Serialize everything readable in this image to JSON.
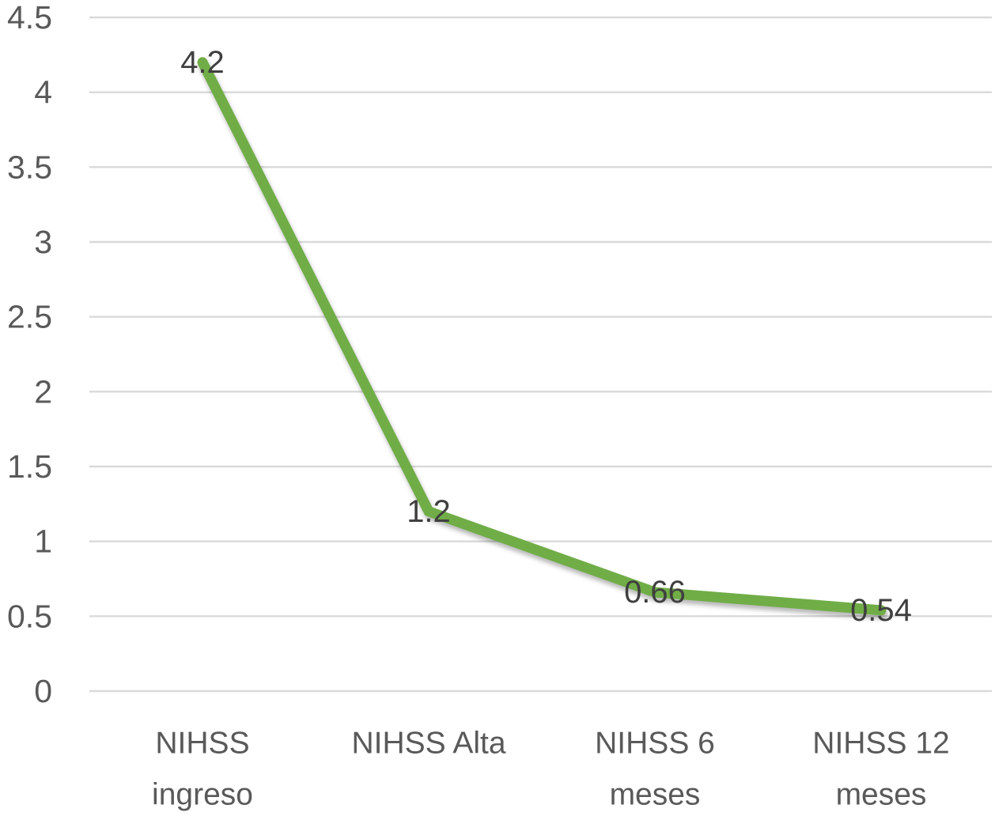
{
  "chart_data": {
    "type": "line",
    "title": "",
    "xlabel": "",
    "ylabel": "",
    "categories": [
      "NIHSS ingreso",
      "NIHSS Alta",
      "NIHSS 6 meses",
      "NIHSS 12 meses"
    ],
    "category_display_lines": [
      [
        "NIHSS",
        "ingreso"
      ],
      [
        "NIHSS Alta"
      ],
      [
        "NIHSS 6",
        "meses"
      ],
      [
        "NIHSS 12",
        "meses"
      ]
    ],
    "series": [
      {
        "name": "NIHSS",
        "values": [
          4.2,
          1.2,
          0.66,
          0.54
        ],
        "color": "#70ad47"
      }
    ],
    "data_labels": [
      "4.2",
      "1.2",
      "0.66",
      "0.54"
    ],
    "ylim": [
      0,
      4.5
    ],
    "y_ticks": [
      0,
      0.5,
      1,
      1.5,
      2,
      2.5,
      3,
      3.5,
      4,
      4.5
    ],
    "y_tick_labels": [
      "0",
      "0.5",
      "1",
      "1.5",
      "2",
      "2.5",
      "3",
      "3.5",
      "4",
      "4.5"
    ],
    "grid": true,
    "legend_position": "none",
    "colors": {
      "line": "#70ad47",
      "gridline": "#d9d9d9",
      "axis_text": "#595959",
      "data_label_text": "#3f3f3f",
      "background": "#ffffff"
    }
  }
}
